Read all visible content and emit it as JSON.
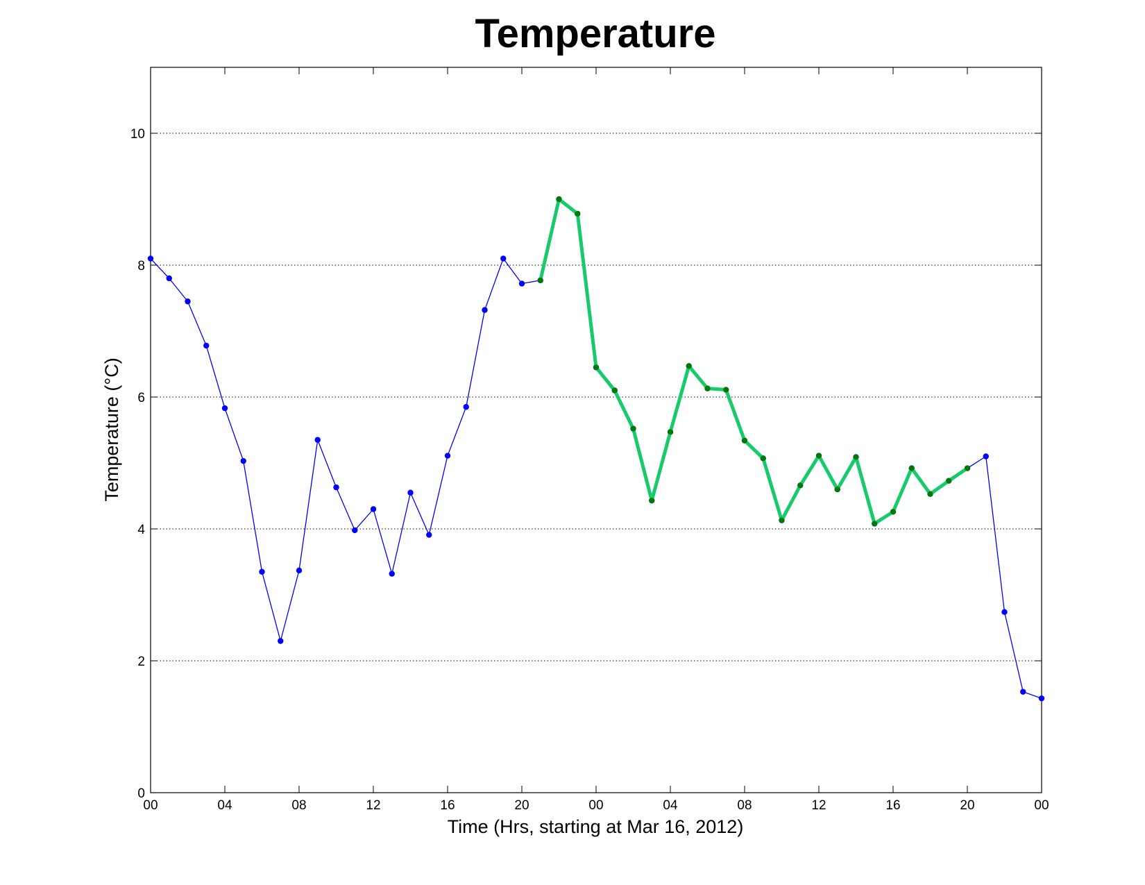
{
  "chart_data": {
    "type": "line",
    "title": "Temperature",
    "xlabel": "Time (Hrs, starting at Mar 16, 2012)",
    "ylabel": "Temperature (°C)",
    "x_unit": "hours",
    "xlim": [
      0,
      48
    ],
    "ylim": [
      0,
      11
    ],
    "x_tick_values": [
      0,
      4,
      8,
      12,
      16,
      20,
      24,
      28,
      32,
      36,
      40,
      44,
      48
    ],
    "x_tick_labels": [
      "00",
      "04",
      "08",
      "12",
      "16",
      "20",
      "00",
      "04",
      "08",
      "12",
      "16",
      "20",
      "00"
    ],
    "y_tick_values": [
      0,
      2,
      4,
      6,
      8,
      10
    ],
    "y_tick_labels": [
      "0",
      "2",
      "4",
      "6",
      "8",
      "10"
    ],
    "grid": "horizontal dotted",
    "series": [
      {
        "color": "#0000ff",
        "marker_color": "#0000ff",
        "style": "thin line with dot markers",
        "x": [
          0,
          1,
          2,
          3,
          4,
          5,
          6,
          7,
          8,
          9,
          10,
          11,
          12,
          13,
          14,
          15,
          16,
          17,
          18,
          19,
          20,
          21,
          22,
          23,
          24,
          25,
          26,
          27,
          28,
          29,
          30,
          31,
          32,
          33,
          34,
          35,
          36,
          37,
          38,
          39,
          40,
          41,
          42,
          43,
          44,
          45,
          46,
          47,
          48
        ],
        "y": [
          8.1,
          7.8,
          7.45,
          6.78,
          5.83,
          5.03,
          3.35,
          2.3,
          3.37,
          5.35,
          4.63,
          3.98,
          4.3,
          3.32,
          4.55,
          3.91,
          5.11,
          5.85,
          7.32,
          8.1,
          7.72,
          7.77,
          9.0,
          8.78,
          6.45,
          6.1,
          5.52,
          4.43,
          5.47,
          6.47,
          6.13,
          6.11,
          5.34,
          5.07,
          4.13,
          4.66,
          5.11,
          4.6,
          5.09,
          4.08,
          4.26,
          4.92,
          4.53,
          4.73,
          4.92,
          5.1,
          2.74,
          1.53,
          1.43
        ]
      },
      {
        "color": "#17cb6b",
        "marker_color": "#007a00",
        "style": "thick line with dot markers",
        "x": [
          21,
          22,
          23,
          24,
          25,
          26,
          27,
          28,
          29,
          30,
          31,
          32,
          33,
          34,
          35,
          36,
          37,
          38,
          39,
          40,
          41,
          42,
          43,
          44
        ],
        "y": [
          7.77,
          9.0,
          8.78,
          6.45,
          6.1,
          5.52,
          4.43,
          5.47,
          6.47,
          6.13,
          6.11,
          5.34,
          5.07,
          4.13,
          4.66,
          5.11,
          4.6,
          5.09,
          4.08,
          4.26,
          4.92,
          4.53,
          4.73,
          4.92
        ]
      }
    ]
  }
}
